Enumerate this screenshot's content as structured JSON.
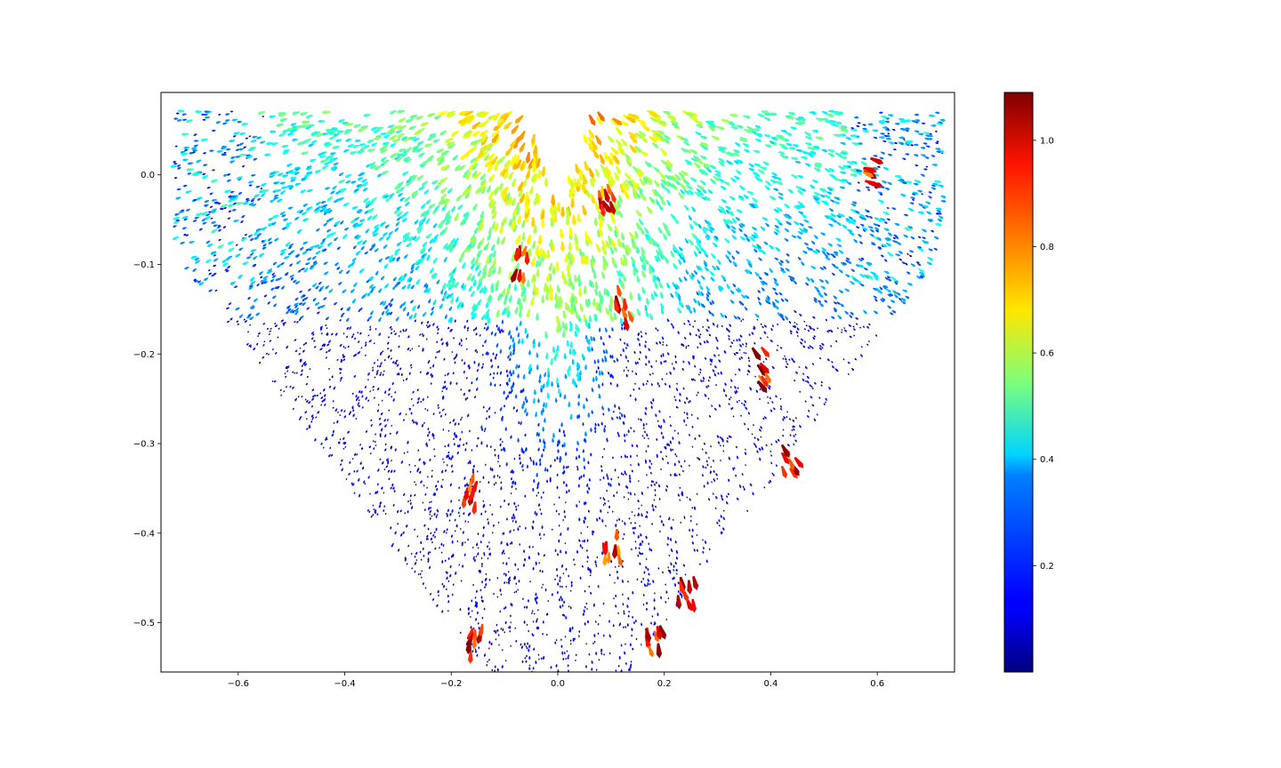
{
  "chart_data": {
    "type": "scatter",
    "subtype": "quiver",
    "title": "",
    "xlabel": "",
    "ylabel": "",
    "xlim": [
      -0.745,
      0.745
    ],
    "ylim": [
      -0.555,
      0.092
    ],
    "x_ticks": [
      -0.6,
      -0.4,
      -0.2,
      0.0,
      0.2,
      0.4,
      0.6
    ],
    "x_tick_labels": [
      "−0.6",
      "−0.4",
      "−0.2",
      "0.0",
      "0.2",
      "0.4",
      "0.6"
    ],
    "y_ticks": [
      0.0,
      -0.1,
      -0.2,
      -0.3,
      -0.4,
      -0.5
    ],
    "y_tick_labels": [
      "0.0",
      "−0.1",
      "−0.2",
      "−0.3",
      "−0.4",
      "−0.5"
    ],
    "grid": false,
    "colormap": "jet",
    "colorbar": {
      "range": [
        0.0,
        1.09
      ],
      "ticks": [
        0.2,
        0.4,
        0.6,
        0.8,
        1.0
      ],
      "tick_labels": [
        "0.2",
        "0.4",
        "0.6",
        "0.8",
        "1.0"
      ]
    },
    "description_regions": [
      {
        "region": "upper fan",
        "x_range": [
          -0.72,
          0.72
        ],
        "y_range": [
          -0.16,
          0.072
        ],
        "magnitude": "0.2-0.6"
      },
      {
        "region": "central plume",
        "x_range": [
          -0.1,
          0.1
        ],
        "y_range": [
          -0.25,
          -0.05
        ],
        "magnitude": "0.4-0.8"
      },
      {
        "region": "lower cone",
        "x_range": [
          -0.5,
          0.5
        ],
        "y_range": [
          -0.555,
          -0.2
        ],
        "magnitude": "0.0-0.2"
      }
    ],
    "hotspots": [
      {
        "x": -0.15,
        "y": -0.52,
        "magnitude": 1.0
      },
      {
        "x": 0.18,
        "y": -0.52,
        "magnitude": 1.0
      },
      {
        "x": 0.24,
        "y": -0.46,
        "magnitude": 1.0
      },
      {
        "x": -0.16,
        "y": -0.35,
        "magnitude": 0.95
      },
      {
        "x": 0.43,
        "y": -0.31,
        "magnitude": 1.0
      },
      {
        "x": 0.1,
        "y": -0.41,
        "magnitude": 0.95
      },
      {
        "x": 0.12,
        "y": -0.14,
        "magnitude": 1.0
      },
      {
        "x": -0.07,
        "y": -0.09,
        "magnitude": 1.0
      },
      {
        "x": 0.38,
        "y": -0.21,
        "magnitude": 1.0
      },
      {
        "x": 0.58,
        "y": 0.0,
        "magnitude": 1.0
      },
      {
        "x": 0.09,
        "y": -0.03,
        "magnitude": 1.0
      }
    ]
  }
}
